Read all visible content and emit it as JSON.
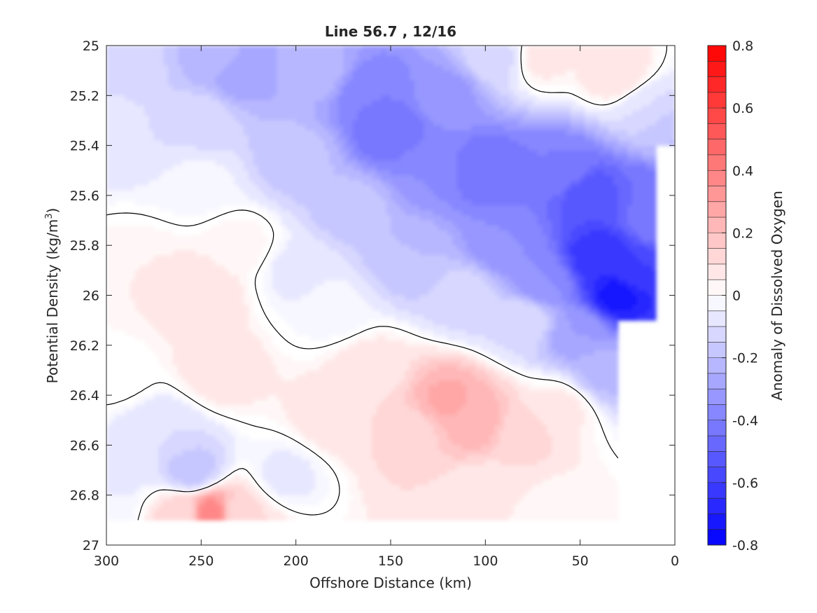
{
  "chart_data": {
    "type": "heatmap",
    "title": "Line 56.7 , 12/16",
    "xlabel": "Offshore Distance (km)",
    "ylabel_main": "Potential Density (kg/m",
    "ylabel_sup": "3",
    "ylabel_close": ")",
    "xlim": [
      300,
      0
    ],
    "ylim": [
      25,
      27
    ],
    "x_direction": "reversed",
    "y_direction": "reversed",
    "x_ticks": [
      300,
      250,
      200,
      150,
      100,
      50,
      0
    ],
    "x_tick_labels": [
      "300",
      "250",
      "200",
      "150",
      "100",
      "50",
      "0"
    ],
    "y_ticks": [
      25,
      25.2,
      25.4,
      25.6,
      25.8,
      26,
      26.2,
      26.4,
      26.6,
      26.8,
      27
    ],
    "y_tick_labels": [
      "25",
      "25.2",
      "25.4",
      "25.6",
      "25.8",
      "26",
      "26.2",
      "26.4",
      "26.6",
      "26.8",
      "27"
    ],
    "colorbar": {
      "label": "Anomaly of Dissolved Oxygen",
      "range": [
        -0.8,
        0.8
      ],
      "levels": 32,
      "ticks": [
        0.8,
        0.6,
        0.4,
        0.2,
        0,
        -0.2,
        -0.4,
        -0.6,
        -0.8
      ],
      "tick_labels": [
        "0.8",
        "0.6",
        "0.4",
        "0.2",
        "0",
        "-0.2",
        "-0.4",
        "-0.6",
        "-0.8"
      ],
      "colormap": "blue-white-red",
      "min_color": "#0000ff",
      "mid_color": "#ffffff",
      "max_color": "#ff0000"
    },
    "zero_contour_color": "#000000",
    "field_points": [
      {
        "x": 290,
        "y": 25.1,
        "v": -0.12
      },
      {
        "x": 240,
        "y": 25.05,
        "v": -0.22
      },
      {
        "x": 230,
        "y": 25.1,
        "v": -0.3
      },
      {
        "x": 300,
        "y": 25.3,
        "v": -0.08
      },
      {
        "x": 250,
        "y": 25.3,
        "v": -0.12
      },
      {
        "x": 190,
        "y": 25.1,
        "v": -0.22
      },
      {
        "x": 160,
        "y": 25.2,
        "v": -0.4
      },
      {
        "x": 150,
        "y": 25.35,
        "v": -0.45
      },
      {
        "x": 120,
        "y": 25.2,
        "v": -0.32
      },
      {
        "x": 95,
        "y": 25.05,
        "v": -0.12
      },
      {
        "x": 70,
        "y": 25.05,
        "v": 0.06
      },
      {
        "x": 30,
        "y": 25.12,
        "v": 0.1
      },
      {
        "x": 15,
        "y": 25.25,
        "v": -0.1
      },
      {
        "x": 3,
        "y": 25.35,
        "v": -0.2
      },
      {
        "x": 200,
        "y": 25.45,
        "v": -0.18
      },
      {
        "x": 250,
        "y": 25.55,
        "v": -0.04
      },
      {
        "x": 170,
        "y": 25.65,
        "v": -0.18
      },
      {
        "x": 130,
        "y": 25.5,
        "v": -0.35
      },
      {
        "x": 100,
        "y": 25.5,
        "v": -0.45
      },
      {
        "x": 60,
        "y": 25.5,
        "v": -0.4
      },
      {
        "x": 45,
        "y": 25.6,
        "v": -0.55
      },
      {
        "x": 40,
        "y": 25.85,
        "v": -0.65
      },
      {
        "x": 30,
        "y": 26.0,
        "v": -0.72
      },
      {
        "x": 20,
        "y": 25.9,
        "v": -0.6
      },
      {
        "x": 15,
        "y": 25.6,
        "v": -0.45
      },
      {
        "x": 8,
        "y": 25.7,
        "v": -0.4
      },
      {
        "x": 90,
        "y": 25.8,
        "v": -0.35
      },
      {
        "x": 70,
        "y": 25.95,
        "v": -0.35
      },
      {
        "x": 50,
        "y": 26.15,
        "v": -0.3
      },
      {
        "x": 38,
        "y": 26.3,
        "v": -0.22
      },
      {
        "x": 140,
        "y": 25.85,
        "v": -0.2
      },
      {
        "x": 110,
        "y": 26.0,
        "v": -0.12
      },
      {
        "x": 80,
        "y": 26.1,
        "v": -0.1
      },
      {
        "x": 200,
        "y": 25.9,
        "v": -0.06
      },
      {
        "x": 180,
        "y": 26.05,
        "v": -0.04
      },
      {
        "x": 280,
        "y": 25.9,
        "v": 0.05
      },
      {
        "x": 250,
        "y": 26.0,
        "v": 0.1
      },
      {
        "x": 240,
        "y": 26.3,
        "v": 0.08
      },
      {
        "x": 230,
        "y": 25.8,
        "v": 0.04
      },
      {
        "x": 160,
        "y": 26.3,
        "v": 0.08
      },
      {
        "x": 120,
        "y": 26.42,
        "v": 0.26
      },
      {
        "x": 105,
        "y": 26.5,
        "v": 0.24
      },
      {
        "x": 140,
        "y": 26.55,
        "v": 0.12
      },
      {
        "x": 80,
        "y": 26.55,
        "v": 0.12
      },
      {
        "x": 60,
        "y": 26.45,
        "v": 0.06
      },
      {
        "x": 180,
        "y": 26.5,
        "v": 0.08
      },
      {
        "x": 100,
        "y": 26.8,
        "v": 0.05
      },
      {
        "x": 60,
        "y": 26.85,
        "v": 0.04
      },
      {
        "x": 245,
        "y": 26.88,
        "v": 0.4
      },
      {
        "x": 260,
        "y": 26.88,
        "v": 0.12
      },
      {
        "x": 230,
        "y": 26.88,
        "v": 0.1
      },
      {
        "x": 255,
        "y": 26.7,
        "v": -0.18
      },
      {
        "x": 270,
        "y": 26.55,
        "v": -0.1
      },
      {
        "x": 290,
        "y": 26.7,
        "v": -0.06
      },
      {
        "x": 205,
        "y": 26.72,
        "v": -0.06
      },
      {
        "x": 295,
        "y": 26.3,
        "v": 0.02
      },
      {
        "x": 300,
        "y": 26.85,
        "v": -0.05
      }
    ]
  }
}
